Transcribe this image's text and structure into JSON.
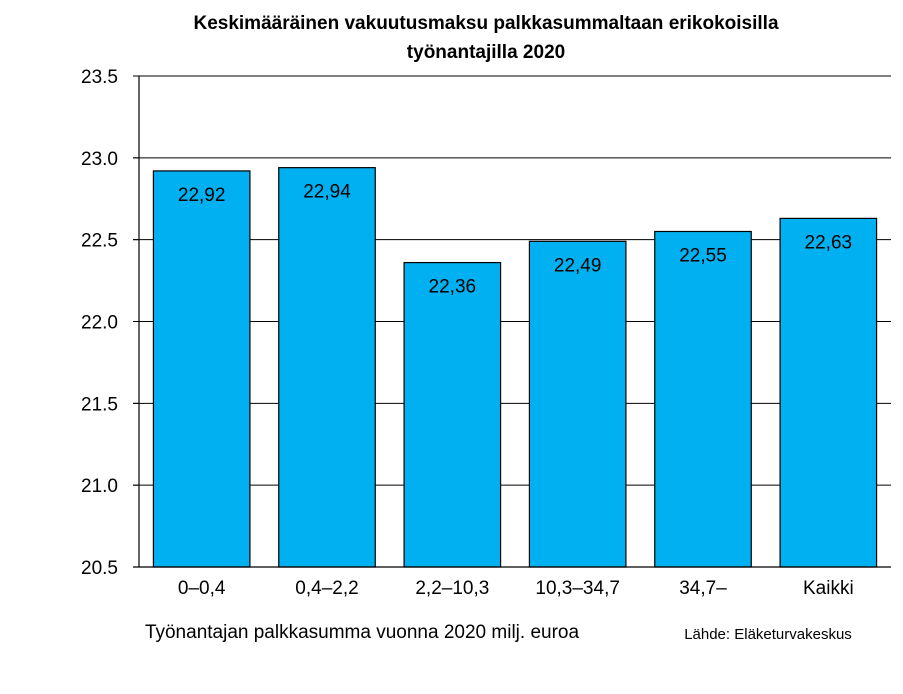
{
  "chart_data": {
    "type": "bar",
    "title_lines": [
      "Keskimääräinen vakuutusmaksu palkkasummaltaan erikokoisilla",
      "työnantajilla 2020"
    ],
    "xlabel": "Työnantajan palkkasumma vuonna 2020 milj. euroa",
    "ylabel": "",
    "source": "Lähde: Eläketurvakeskus",
    "categories": [
      "0–0,4",
      "0,4–2,2",
      "2,2–10,3",
      "10,3–34,7",
      "34,7–",
      "Kaikki"
    ],
    "values": [
      22.92,
      22.94,
      22.36,
      22.49,
      22.55,
      22.63
    ],
    "data_labels": [
      "22,92",
      "22,94",
      "22,36",
      "22,49",
      "22,55",
      "22,63"
    ],
    "ylim": [
      20.5,
      23.5
    ],
    "yticks": [
      20.5,
      21.0,
      21.5,
      22.0,
      22.5,
      23.0,
      23.5
    ],
    "ytick_labels": [
      "20.5",
      "21.0",
      "21.5",
      "22.0",
      "22.5",
      "23.0",
      "23.5"
    ],
    "grid": true,
    "legend": "none",
    "bar_color": "#00b0f0",
    "bar_edge_color": "#000000",
    "grid_color": "#000000"
  }
}
